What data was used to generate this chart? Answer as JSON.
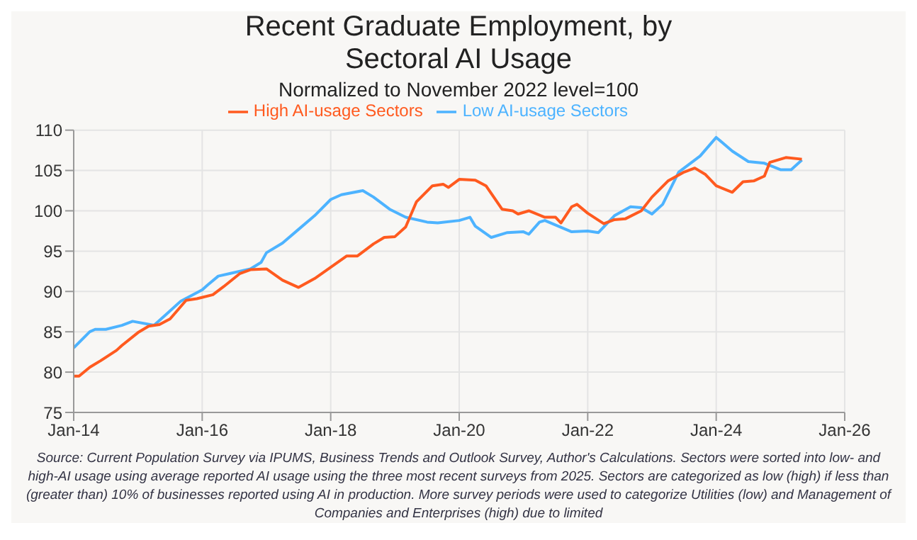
{
  "chart_data": {
    "type": "line",
    "title": "Recent Graduate Employment, by Sectoral AI Usage",
    "subtitle": "Normalized to November 2022 level=100",
    "xlim": [
      "2014-01",
      "2026-01"
    ],
    "xticks": [
      {
        "value": "2014-01",
        "label": "Jan-14"
      },
      {
        "value": "2016-01",
        "label": "Jan-16"
      },
      {
        "value": "2018-01",
        "label": "Jan-18"
      },
      {
        "value": "2020-01",
        "label": "Jan-20"
      },
      {
        "value": "2022-01",
        "label": "Jan-22"
      },
      {
        "value": "2024-01",
        "label": "Jan-24"
      },
      {
        "value": "2026-01",
        "label": "Jan-26"
      }
    ],
    "ylim": [
      75,
      110
    ],
    "yticks": [
      75,
      80,
      85,
      90,
      95,
      100,
      105,
      110
    ],
    "grid": true,
    "legend": "top",
    "line_style": "solid",
    "series": [
      {
        "name": "Low AI-usage Sectors",
        "color": "#4db3ff",
        "x": [
          "2014-01",
          "2014-04",
          "2014-05",
          "2014-07",
          "2014-10",
          "2014-12",
          "2015-04",
          "2015-06",
          "2015-09",
          "2016-01",
          "2016-02",
          "2016-04",
          "2016-06",
          "2016-10",
          "2016-12",
          "2017-01",
          "2017-04",
          "2017-07",
          "2017-10",
          "2018-01",
          "2018-03",
          "2018-07",
          "2018-09",
          "2018-12",
          "2019-03",
          "2019-07",
          "2019-09",
          "2020-01",
          "2020-03",
          "2020-04",
          "2020-07",
          "2020-10",
          "2021-01",
          "2021-02",
          "2021-04",
          "2021-05",
          "2021-10",
          "2022-01",
          "2022-03",
          "2022-06",
          "2022-09",
          "2022-11",
          "2023-01",
          "2023-03",
          "2023-06",
          "2023-10",
          "2024-01",
          "2024-04",
          "2024-07",
          "2024-10",
          "2025-01",
          "2025-03",
          "2025-05"
        ],
        "values": [
          83.0,
          85.0,
          85.3,
          85.3,
          85.8,
          86.3,
          85.8,
          87.0,
          88.8,
          90.2,
          90.8,
          91.9,
          92.2,
          92.8,
          93.6,
          94.8,
          96.0,
          97.7,
          99.4,
          101.4,
          102.0,
          102.5,
          101.7,
          100.2,
          99.2,
          98.6,
          98.5,
          98.8,
          99.2,
          98.1,
          96.7,
          97.3,
          97.4,
          97.1,
          98.6,
          98.8,
          97.4,
          97.5,
          97.3,
          99.4,
          100.5,
          100.4,
          99.6,
          100.8,
          104.8,
          106.8,
          109.1,
          107.4,
          106.1,
          105.9,
          105.1,
          105.1,
          106.3
        ]
      },
      {
        "name": "High AI-usage Sectors",
        "color": "#ff5a1f",
        "x": [
          "2014-01",
          "2014-02",
          "2014-04",
          "2014-06",
          "2014-09",
          "2014-10",
          "2015-01",
          "2015-03",
          "2015-05",
          "2015-07",
          "2015-10",
          "2015-12",
          "2016-03",
          "2016-05",
          "2016-08",
          "2016-10",
          "2017-01",
          "2017-04",
          "2017-07",
          "2017-10",
          "2018-01",
          "2018-04",
          "2018-06",
          "2018-09",
          "2018-11",
          "2019-01",
          "2019-03",
          "2019-05",
          "2019-08",
          "2019-10",
          "2019-11",
          "2020-01",
          "2020-04",
          "2020-06",
          "2020-09",
          "2020-11",
          "2020-12",
          "2021-02",
          "2021-05",
          "2021-07",
          "2021-08",
          "2021-10",
          "2021-11",
          "2022-01",
          "2022-04",
          "2022-06",
          "2022-08",
          "2022-11",
          "2023-01",
          "2023-04",
          "2023-07",
          "2023-09",
          "2023-11",
          "2024-01",
          "2024-04",
          "2024-06",
          "2024-08",
          "2024-10",
          "2024-11",
          "2025-02",
          "2025-05"
        ],
        "values": [
          79.5,
          79.5,
          80.6,
          81.4,
          82.7,
          83.3,
          84.9,
          85.7,
          85.9,
          86.6,
          88.9,
          89.1,
          89.6,
          90.6,
          92.2,
          92.7,
          92.8,
          91.4,
          90.5,
          91.6,
          93.0,
          94.4,
          94.4,
          95.9,
          96.7,
          96.8,
          98.0,
          101.1,
          103.1,
          103.3,
          102.9,
          103.9,
          103.8,
          103.1,
          100.2,
          100.0,
          99.6,
          100.0,
          99.2,
          99.2,
          98.5,
          100.5,
          100.8,
          99.7,
          98.4,
          98.9,
          99.0,
          100.0,
          101.7,
          103.7,
          104.8,
          105.3,
          104.5,
          103.1,
          102.3,
          103.6,
          103.7,
          104.3,
          106.0,
          106.6,
          106.4
        ]
      }
    ],
    "annotations": [
      "Source: Current Population Survey via IPUMS, Business Trends and Outlook Survey, Author's Calculations. Sectors were sorted into low- and high-AI usage using average reported AI usage using the three most recent surveys from 2025. Sectors are categorized as low (high) if less than (greater than) 10% of businesses reported using AI in production. More survey periods were used to categorize Utilities (low) and Management of Companies and Enterprises (high) due to limited"
    ]
  }
}
